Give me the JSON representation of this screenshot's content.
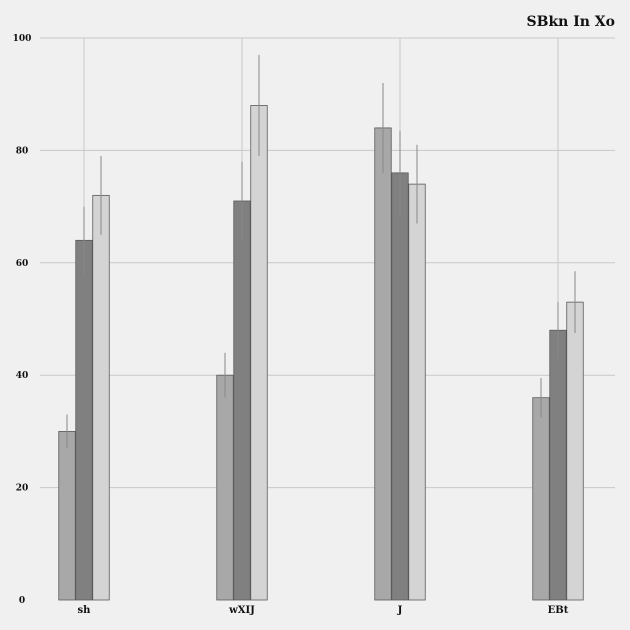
{
  "chart_data": {
    "type": "bar",
    "title": "SBkn In Xo",
    "xlabel": "",
    "ylabel": "",
    "categories": [
      "sh",
      "wXIJ",
      "J",
      "EBt"
    ],
    "ylim": [
      0,
      100
    ],
    "yticks": [
      0,
      20,
      40,
      60,
      80,
      100
    ],
    "grid": true,
    "series": [
      {
        "color": "#a8a8a8",
        "values": [
          30,
          40,
          84,
          36
        ],
        "errors": [
          3,
          4,
          8,
          3.5
        ]
      },
      {
        "color": "#808080",
        "values": [
          64,
          71,
          76,
          48
        ],
        "errors": [
          6,
          7,
          7.5,
          5
        ]
      },
      {
        "color": "#d4d4d4",
        "values": [
          72,
          88,
          74,
          53
        ],
        "errors": [
          7,
          9,
          7,
          5.5
        ]
      }
    ]
  }
}
